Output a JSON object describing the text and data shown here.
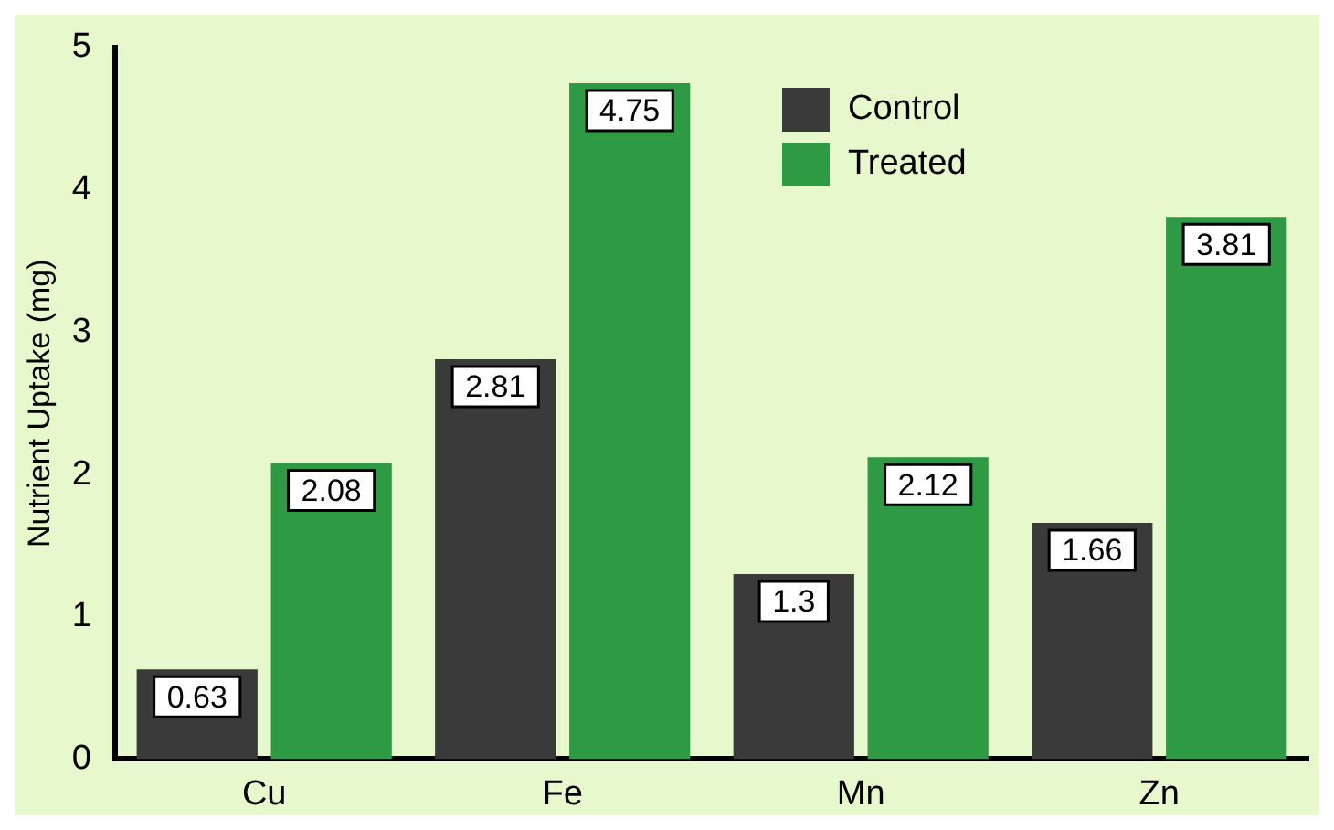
{
  "chart_data": {
    "type": "bar",
    "ylabel": "Nutrient Uptake (mg)",
    "categories": [
      "Cu",
      "Fe",
      "Mn",
      "Zn"
    ],
    "series": [
      {
        "name": "Control",
        "color": "#3a3a3a",
        "values": [
          0.63,
          2.81,
          1.3,
          1.66
        ]
      },
      {
        "name": "Treated",
        "color": "#2e9a44",
        "values": [
          2.08,
          4.75,
          2.12,
          3.81
        ]
      }
    ],
    "ylim": [
      0,
      5
    ],
    "yticks": [
      0,
      1,
      2,
      3,
      4,
      5
    ],
    "grid": false,
    "legend": "top right",
    "data_labels": true
  }
}
